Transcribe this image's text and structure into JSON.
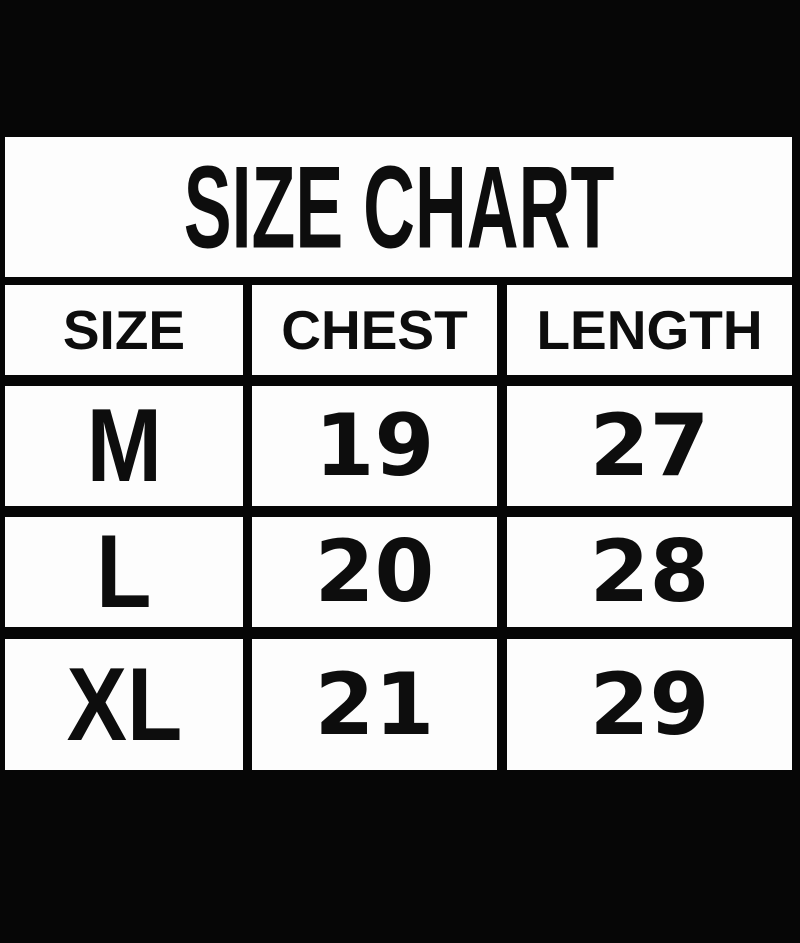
{
  "title": "SIZE CHART",
  "chart_data": {
    "type": "table",
    "title": "SIZE CHART",
    "columns": [
      "SIZE",
      "CHEST",
      "LENGTH"
    ],
    "rows": [
      [
        "M",
        "19",
        "27"
      ],
      [
        "L",
        "20",
        "28"
      ],
      [
        "XL",
        "21",
        "29"
      ]
    ]
  },
  "colors": {
    "background": "#060606",
    "cell_fill": "#fdfdfd",
    "text": "#0d0d0d"
  }
}
